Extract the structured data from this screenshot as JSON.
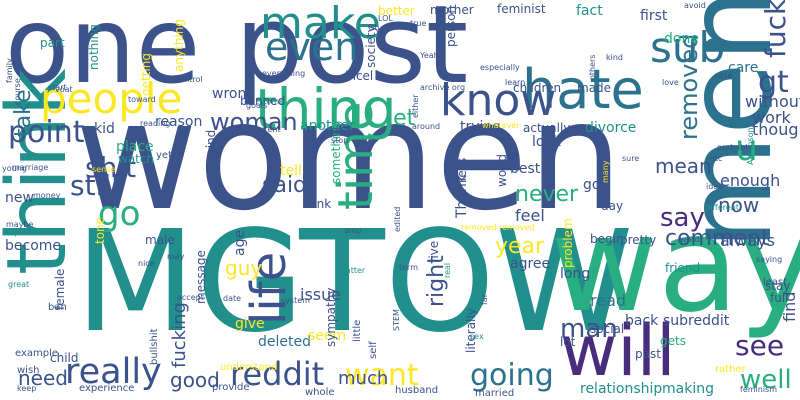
{
  "palette": {
    "purple": "#472d7b",
    "indigo": "#3b528b",
    "blue": "#2c728e",
    "teal": "#21908d",
    "green": "#28ae80",
    "lime": "#5ec962",
    "lightgreen": "#addc30",
    "yellow": "#fde725"
  },
  "words": [
    {
      "text": "women",
      "color": "indigo"
    },
    {
      "text": "MGTOW",
      "color": "teal"
    },
    {
      "text": "one",
      "color": "indigo"
    },
    {
      "text": "post",
      "color": "indigo"
    },
    {
      "text": "way",
      "color": "green"
    },
    {
      "text": "men",
      "color": "blue"
    },
    {
      "text": "will",
      "color": "purple"
    },
    {
      "text": "think",
      "color": "teal"
    },
    {
      "text": "people",
      "color": "yellow"
    },
    {
      "text": "thing",
      "color": "green"
    },
    {
      "text": "hate",
      "color": "blue"
    },
    {
      "text": "know",
      "color": "indigo"
    },
    {
      "text": "make",
      "color": "teal"
    },
    {
      "text": "even",
      "color": "blue"
    },
    {
      "text": "sub",
      "color": "blue"
    },
    {
      "text": "time",
      "color": "green"
    },
    {
      "text": "life",
      "color": "indigo"
    },
    {
      "text": "really",
      "color": "indigo"
    },
    {
      "text": "reddit",
      "color": "indigo"
    },
    {
      "text": "going",
      "color": "blue"
    },
    {
      "text": "want",
      "color": "yellow"
    },
    {
      "text": "fuck",
      "color": "indigo"
    },
    {
      "text": "gt",
      "color": "indigo"
    },
    {
      "text": "point",
      "color": "indigo"
    },
    {
      "text": "woman",
      "color": "indigo"
    },
    {
      "text": "shit",
      "color": "indigo"
    },
    {
      "text": "still",
      "color": "indigo"
    },
    {
      "text": "go",
      "color": "green"
    },
    {
      "text": "u",
      "color": "green"
    },
    {
      "text": "see",
      "color": "purple"
    },
    {
      "text": "well",
      "color": "green"
    },
    {
      "text": "much",
      "color": "indigo"
    },
    {
      "text": "good",
      "color": "indigo"
    },
    {
      "text": "need",
      "color": "indigo"
    },
    {
      "text": "man",
      "color": "indigo"
    },
    {
      "text": "right",
      "color": "indigo"
    },
    {
      "text": "said",
      "color": "indigo"
    },
    {
      "text": "say",
      "color": "purple"
    },
    {
      "text": "comment",
      "color": "indigo"
    },
    {
      "text": "now",
      "color": "indigo"
    },
    {
      "text": "never",
      "color": "green"
    },
    {
      "text": "year",
      "color": "yellow"
    },
    {
      "text": "removed",
      "color": "blue"
    },
    {
      "text": "let",
      "color": "green"
    },
    {
      "text": "take",
      "color": "blue"
    },
    {
      "text": "guy",
      "color": "yellow"
    },
    {
      "text": "mean",
      "color": "indigo"
    },
    {
      "text": "feel",
      "color": "indigo"
    },
    {
      "text": "read",
      "color": "blue"
    },
    {
      "text": "fucking",
      "color": "indigo"
    },
    {
      "text": "relationship",
      "color": "teal"
    },
    {
      "text": "making",
      "color": "teal"
    },
    {
      "text": "issue",
      "color": "indigo"
    },
    {
      "text": "back",
      "color": "indigo"
    },
    {
      "text": "subreddit",
      "color": "indigo"
    },
    {
      "text": "deleted",
      "color": "blue"
    },
    {
      "text": "seem",
      "color": "yellow"
    },
    {
      "text": "give",
      "color": "yellow"
    },
    {
      "text": "find",
      "color": "indigo"
    },
    {
      "text": "enough",
      "color": "indigo"
    },
    {
      "text": "always",
      "color": "indigo"
    },
    {
      "text": "though",
      "color": "indigo"
    },
    {
      "text": "work",
      "color": "indigo"
    },
    {
      "text": "without",
      "color": "indigo"
    },
    {
      "text": "care",
      "color": "blue"
    },
    {
      "text": "done",
      "color": "green"
    },
    {
      "text": "first",
      "color": "indigo"
    },
    {
      "text": "fact",
      "color": "teal"
    },
    {
      "text": "feminist",
      "color": "indigo"
    },
    {
      "text": "mother",
      "color": "indigo"
    },
    {
      "text": "better",
      "color": "yellow"
    },
    {
      "text": "part",
      "color": "teal"
    },
    {
      "text": "nothing",
      "color": "teal"
    },
    {
      "text": "anything",
      "color": "yellow"
    },
    {
      "text": "getting",
      "color": "yellow"
    },
    {
      "text": "banned",
      "color": "indigo"
    },
    {
      "text": "wrong",
      "color": "indigo"
    },
    {
      "text": "reason",
      "color": "indigo"
    },
    {
      "text": "kid",
      "color": "indigo"
    },
    {
      "text": "place",
      "color": "green"
    },
    {
      "text": "watch",
      "color": "teal"
    },
    {
      "text": "mind",
      "color": "indigo"
    },
    {
      "text": "another",
      "color": "teal"
    },
    {
      "text": "tell",
      "color": "yellow"
    },
    {
      "text": "best",
      "color": "indigo"
    },
    {
      "text": "got",
      "color": "indigo"
    },
    {
      "text": "day",
      "color": "indigo"
    },
    {
      "text": "look",
      "color": "indigo"
    },
    {
      "text": "actually",
      "color": "indigo"
    },
    {
      "text": "divorce",
      "color": "teal"
    },
    {
      "text": "trying",
      "color": "indigo"
    },
    {
      "text": "made",
      "color": "indigo"
    },
    {
      "text": "children",
      "color": "indigo"
    },
    {
      "text": "incel",
      "color": "indigo"
    },
    {
      "text": "person",
      "color": "indigo"
    },
    {
      "text": "society",
      "color": "indigo"
    },
    {
      "text": "link",
      "color": "indigo"
    },
    {
      "text": "something",
      "color": "green"
    },
    {
      "text": "Thank",
      "color": "indigo"
    },
    {
      "text": "world",
      "color": "indigo"
    },
    {
      "text": "live",
      "color": "indigo"
    },
    {
      "text": "problem",
      "color": "yellow"
    },
    {
      "text": "agree",
      "color": "indigo"
    },
    {
      "text": "long",
      "color": "indigo"
    },
    {
      "text": "gets",
      "color": "green"
    },
    {
      "text": "literally",
      "color": "indigo"
    },
    {
      "text": "age",
      "color": "indigo"
    },
    {
      "text": "become",
      "color": "indigo"
    },
    {
      "text": "male",
      "color": "indigo"
    },
    {
      "text": "new",
      "color": "indigo"
    },
    {
      "text": "example",
      "color": "indigo"
    },
    {
      "text": "child",
      "color": "indigo"
    },
    {
      "text": "female",
      "color": "indigo"
    },
    {
      "text": "message",
      "color": "indigo"
    },
    {
      "text": "experience",
      "color": "indigo"
    },
    {
      "text": "sympathy",
      "color": "indigo"
    },
    {
      "text": "pretty",
      "color": "indigo"
    },
    {
      "text": "begin",
      "color": "indigo"
    },
    {
      "text": "friend",
      "color": "teal"
    },
    {
      "text": "stay",
      "color": "indigo"
    },
    {
      "text": "full",
      "color": "indigo"
    },
    {
      "text": "least",
      "color": "indigo"
    },
    {
      "text": "lot",
      "color": "indigo"
    },
    {
      "text": "past",
      "color": "indigo"
    },
    {
      "text": "social",
      "color": "indigo"
    },
    {
      "text": "married",
      "color": "indigo"
    },
    {
      "text": "husband",
      "color": "indigo"
    },
    {
      "text": "whole",
      "color": "indigo"
    },
    {
      "text": "provide",
      "color": "indigo"
    },
    {
      "text": "bullshit",
      "color": "indigo"
    },
    {
      "text": "wish",
      "color": "indigo"
    },
    {
      "text": "keep",
      "color": "indigo"
    },
    {
      "text": "understand",
      "color": "yellow"
    },
    {
      "text": "self",
      "color": "indigo"
    },
    {
      "text": "little",
      "color": "indigo"
    },
    {
      "text": "feminism",
      "color": "indigo"
    },
    {
      "text": "rather",
      "color": "yellow"
    },
    {
      "text": "yet",
      "color": "indigo"
    },
    {
      "text": "sense",
      "color": "yellow"
    },
    {
      "text": "marriage",
      "color": "indigo"
    },
    {
      "text": "young",
      "color": "indigo"
    },
    {
      "text": "help",
      "color": "teal"
    },
    {
      "text": "maybe",
      "color": "indigo"
    },
    {
      "text": "money",
      "color": "indigo"
    },
    {
      "text": "great",
      "color": "teal"
    },
    {
      "text": "ban",
      "color": "indigo"
    },
    {
      "text": "voat",
      "color": "indigo"
    },
    {
      "text": "reading",
      "color": "indigo"
    },
    {
      "text": "content",
      "color": "indigo"
    },
    {
      "text": "stop",
      "color": "indigo"
    },
    {
      "text": "bad",
      "color": "indigo"
    },
    {
      "text": "around",
      "color": "indigo"
    },
    {
      "text": "whatever",
      "color": "yellow"
    },
    {
      "text": "goals",
      "color": "indigo"
    },
    {
      "text": "control",
      "color": "indigo"
    },
    {
      "text": "start",
      "color": "indigo"
    },
    {
      "text": "toward",
      "color": "indigo"
    },
    {
      "text": "course",
      "color": "indigo"
    },
    {
      "text": "family",
      "color": "indigo"
    },
    {
      "text": "everything",
      "color": "indigo"
    },
    {
      "text": "archive org",
      "color": "indigo"
    },
    {
      "text": "learn",
      "color": "indigo"
    },
    {
      "text": "others",
      "color": "indigo"
    },
    {
      "text": "especially",
      "color": "indigo"
    },
    {
      "text": "Yeah",
      "color": "indigo"
    },
    {
      "text": "Oh",
      "color": "indigo"
    },
    {
      "text": "LOL",
      "color": "indigo"
    },
    {
      "text": "true",
      "color": "indigo"
    },
    {
      "text": "avoid",
      "color": "indigo"
    },
    {
      "text": "kind",
      "color": "indigo"
    },
    {
      "text": "love",
      "color": "indigo"
    },
    {
      "text": "case",
      "color": "indigo"
    },
    {
      "text": "probably",
      "color": "indigo"
    },
    {
      "text": "sure",
      "color": "indigo"
    },
    {
      "text": "idea",
      "color": "indigo"
    },
    {
      "text": "different",
      "color": "teal"
    },
    {
      "text": "etc",
      "color": "indigo"
    },
    {
      "text": "Aaronson",
      "color": "teal"
    },
    {
      "text": "many",
      "color": "yellow"
    },
    {
      "text": "saying",
      "color": "indigo"
    },
    {
      "text": "word",
      "color": "indigo"
    },
    {
      "text": "amp",
      "color": "indigo"
    },
    {
      "text": "term",
      "color": "indigo"
    },
    {
      "text": "edited",
      "color": "indigo"
    },
    {
      "text": "removed removed",
      "color": "yellow"
    },
    {
      "text": "real",
      "color": "teal"
    },
    {
      "text": "far",
      "color": "indigo"
    },
    {
      "text": "matter",
      "color": "teal"
    },
    {
      "text": "may",
      "color": "indigo"
    },
    {
      "text": "nice",
      "color": "indigo"
    },
    {
      "text": "accept",
      "color": "indigo"
    },
    {
      "text": "date",
      "color": "indigo"
    },
    {
      "text": "system",
      "color": "indigo"
    },
    {
      "text": "sex",
      "color": "teal"
    },
    {
      "text": "STEM",
      "color": "indigo"
    },
    {
      "text": "either",
      "color": "indigo"
    },
    {
      "text": "less",
      "color": "indigo"
    },
    {
      "text": "tone",
      "color": "yellow"
    },
    {
      "text": "come",
      "color": "teal"
    },
    {
      "text": "s",
      "color": "indigo"
    }
  ]
}
